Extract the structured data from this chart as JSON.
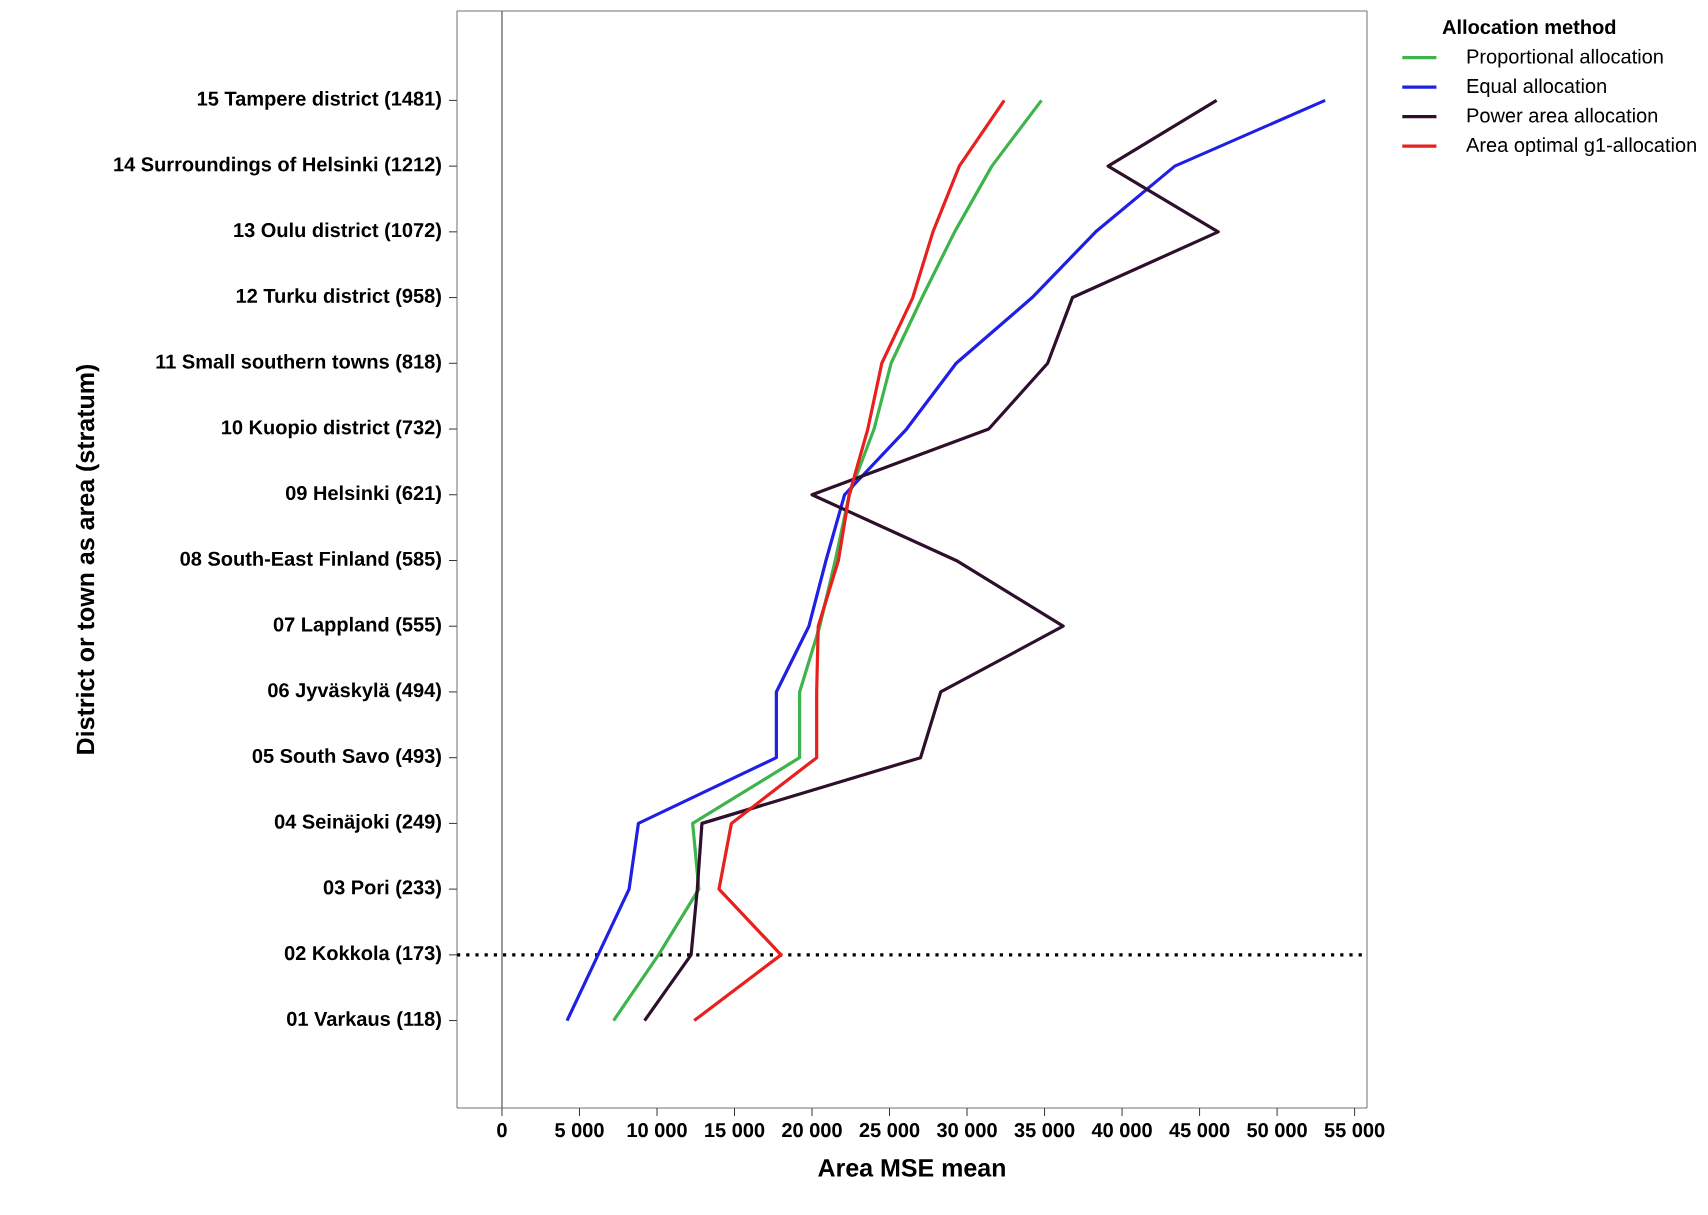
{
  "chart_data": {
    "type": "line",
    "orientation": "horizontal",
    "xlabel": "Area MSE mean",
    "ylabel": "District or town as area (stratum)",
    "legend_title": "Allocation method",
    "legend": "top right",
    "categories": [
      "15 Tampere district (1481)",
      "14 Surroundings of Helsinki (1212)",
      "13 Oulu district (1072)",
      "12 Turku district (958)",
      "11 Small southern towns (818)",
      "10 Kuopio district (732)",
      "09 Helsinki (621)",
      "08 South-East Finland (585)",
      "07 Lappland (555)",
      "06 Jyväskylä (494)",
      "05  South Savo (493)",
      "04 Seinäjoki (249)",
      "03 Pori (233)",
      "02 Kokkola (173)",
      "01 Varkaus (118)"
    ],
    "series": [
      {
        "name": "Proportional allocation",
        "color": "#3db54c",
        "values": [
          34800,
          31600,
          29200,
          27100,
          25100,
          24000,
          22400,
          21500,
          20500,
          19200,
          19200,
          12300,
          12700,
          10100,
          7200
        ]
      },
      {
        "name": "Equal allocation",
        "color": "#1f1fe6",
        "values": [
          53100,
          43400,
          38300,
          34200,
          29300,
          26100,
          22100,
          20900,
          19800,
          17700,
          17700,
          8800,
          8200,
          6200,
          4200
        ]
      },
      {
        "name": "Power area allocation",
        "color": "#2e0f2c",
        "values": [
          46100,
          39100,
          46200,
          36800,
          35200,
          31400,
          20000,
          29300,
          36200,
          28300,
          27000,
          12900,
          12600,
          12200,
          9200
        ]
      },
      {
        "name": "Area optimal g1-allocation",
        "color": "#e8201e",
        "values": [
          32400,
          29500,
          27800,
          26500,
          24500,
          23600,
          22400,
          21700,
          20400,
          20300,
          20300,
          14800,
          14000,
          18000,
          12400
        ]
      }
    ],
    "xlim": [
      -2900,
      55800
    ],
    "xticks": [
      0,
      {
        "value": 5000,
        "label": "5 000"
      },
      {
        "value": 10000,
        "label": "10 000"
      },
      {
        "value": 15000,
        "label": "15 000"
      },
      {
        "value": 20000,
        "label": "20 000"
      },
      {
        "value": 25000,
        "label": "25 000"
      },
      {
        "value": 30000,
        "label": "30 000"
      },
      {
        "value": 35000,
        "label": "35 000"
      },
      {
        "value": 40000,
        "label": "40 000"
      },
      {
        "value": 45000,
        "label": "45 000"
      },
      {
        "value": 50000,
        "label": "50 000"
      },
      {
        "value": 55000,
        "label": "55 000"
      }
    ],
    "ref_lines": [
      {
        "axis": "x",
        "value": 0,
        "color": "#808080",
        "line_style": "solid"
      },
      {
        "axis": "y",
        "value": "02 Kokkola (173)",
        "color": "#000000",
        "line_style": "dotted"
      }
    ],
    "grid": false,
    "marker": "none",
    "line_style": "solid"
  }
}
